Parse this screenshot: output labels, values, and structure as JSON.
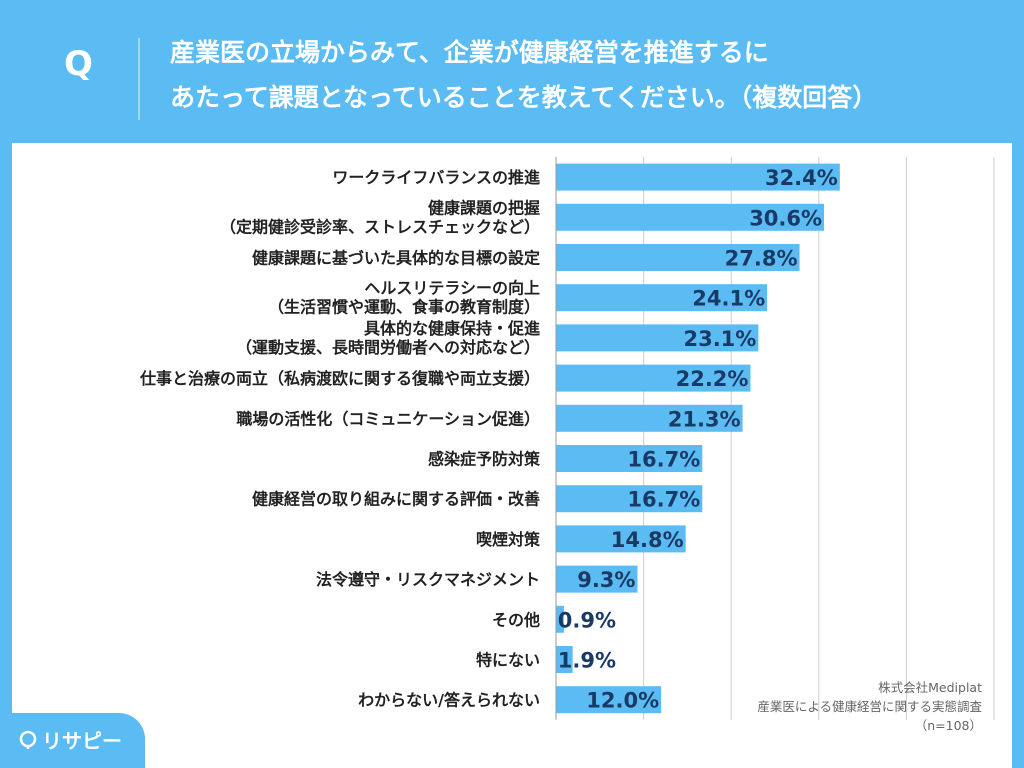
{
  "header": {
    "q_mark": "Q",
    "question_line1": "産業医の立場からみて、企業が健康経営を推進するに",
    "question_line2": "あたって課題となっていることを教えてください。（複数回答）"
  },
  "chart_data": {
    "type": "bar",
    "orientation": "horizontal",
    "unit": "%",
    "xlim": [
      0,
      50
    ],
    "grid": true,
    "categories": [
      [
        "ワークライフバランスの推進"
      ],
      [
        "健康課題の把握",
        "（定期健診受診率、ストレスチェックなど）"
      ],
      [
        "健康課題に基づいた具体的な目標の設定"
      ],
      [
        "ヘルスリテラシーの向上",
        "（生活習慣や運動、食事の教育制度）"
      ],
      [
        "具体的な健康保持・促進",
        "（運動支援、長時間労働者への対応など）"
      ],
      [
        "仕事と治療の両立（私病渡欧に関する復職や両立支援）"
      ],
      [
        "職場の活性化（コミュニケーション促進）"
      ],
      [
        "感染症予防対策"
      ],
      [
        "健康経営の取り組みに関する評価・改善"
      ],
      [
        "喫煙対策"
      ],
      [
        "法令遵守・リスクマネジメント"
      ],
      [
        "その他"
      ],
      [
        "特にない"
      ],
      [
        "わからない/答えられない"
      ]
    ],
    "values": [
      32.4,
      30.6,
      27.8,
      24.1,
      23.1,
      22.2,
      21.3,
      16.7,
      16.7,
      14.8,
      9.3,
      0.9,
      1.9,
      12.0
    ],
    "value_labels": [
      "32.4%",
      "30.6%",
      "27.8%",
      "24.1%",
      "23.1%",
      "22.2%",
      "21.3%",
      "16.7%",
      "16.7%",
      "14.8%",
      "9.3%",
      "0.9%",
      "1.9%",
      "12.0%"
    ],
    "bar_color": "#5bbbf3"
  },
  "source": {
    "company": "株式会社Mediplat",
    "survey": "産業医による健康経営に関する実態調査",
    "sample": "（n=108）"
  },
  "logo": {
    "text": "リサピー"
  },
  "colors": {
    "background": "#5bbbf3",
    "panel": "#ffffff",
    "value_text": "#1a3a66"
  }
}
